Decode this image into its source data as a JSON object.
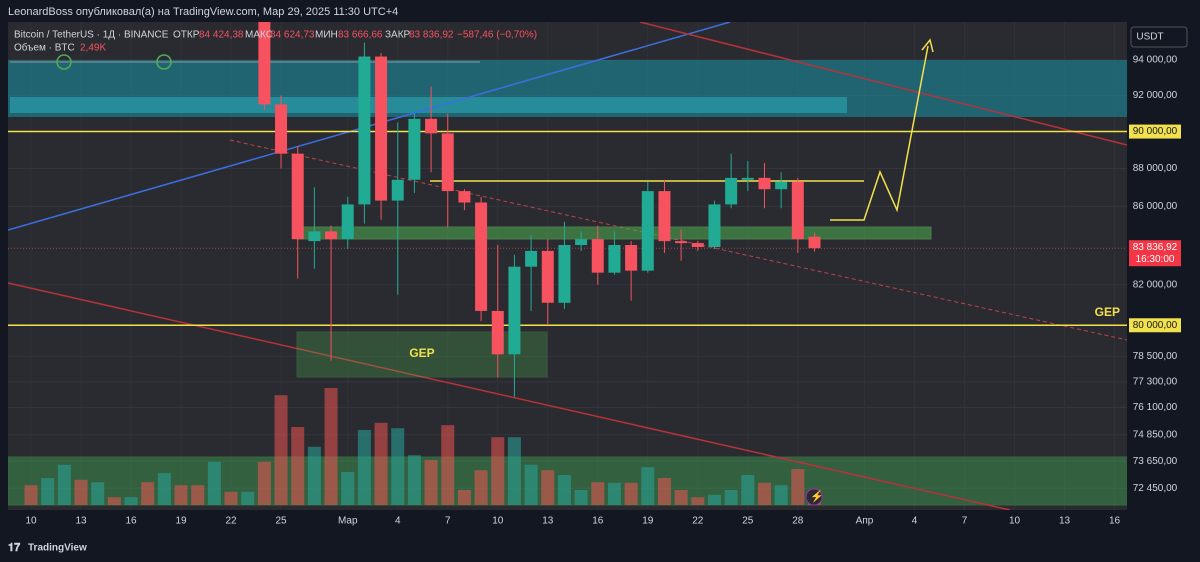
{
  "header": {
    "publisher": "LeonardBoss опубликовал(а) на TradingView.com, Мар 29, 2025 11:30 UTC+4",
    "symbol": "Bitcoin / TetherUS · 1Д · BINANCE",
    "open_label": "ОТКР",
    "open": "84 424,38",
    "high_label": "МАКС",
    "high": "84 624,73",
    "low_label": "МИН",
    "low": "83 666,66",
    "close_label": "ЗАКР",
    "close": "83 836,92",
    "change": "−587,46 (−0,70%)",
    "volume_label": "Объем · BTC",
    "volume": "2,49K",
    "currency": "USDT"
  },
  "annotations": {
    "gep_box": "GEP",
    "gep_right": "GEP"
  },
  "footer": {
    "brand": "TradingView"
  },
  "chart_data": {
    "type": "candlestick",
    "log_scale": true,
    "categories": [
      "10",
      null,
      null,
      "13",
      null,
      null,
      "16",
      null,
      null,
      "19",
      null,
      null,
      "22",
      null,
      null,
      "25",
      null,
      null,
      null,
      "Мар",
      null,
      null,
      "4",
      null,
      null,
      "7",
      null,
      null,
      "10",
      null,
      null,
      "13",
      null,
      null,
      "16",
      null,
      null,
      "19",
      null,
      null,
      "22",
      null,
      null,
      "25",
      null,
      null,
      "28",
      null,
      null,
      null,
      "Апр",
      null,
      null,
      "4",
      null,
      null,
      "7",
      null,
      null,
      "10",
      null,
      null,
      "13",
      null,
      null,
      "16",
      null
    ],
    "open": [
      null,
      null,
      null,
      null,
      null,
      null,
      null,
      null,
      null,
      null,
      null,
      null,
      null,
      null,
      96300,
      91500,
      88800,
      84200,
      84700,
      84300,
      86100,
      94200,
      86300,
      87400,
      90700,
      89900,
      86800,
      86200,
      80700,
      78600,
      82900,
      83700,
      81100,
      84000,
      84300,
      82600,
      84000,
      82700,
      86800,
      84200,
      84100,
      83900,
      86100,
      87400,
      87500,
      86900,
      87300,
      84424.38,
      null,
      null,
      null,
      null,
      null,
      null,
      null,
      null,
      null,
      null,
      null,
      null,
      null,
      null,
      null,
      null,
      null,
      null,
      null
    ],
    "high": [
      null,
      null,
      null,
      null,
      null,
      null,
      null,
      null,
      null,
      null,
      null,
      null,
      null,
      null,
      96500,
      92000,
      89200,
      87000,
      85000,
      86500,
      95000,
      94400,
      90500,
      91000,
      92500,
      91000,
      86900,
      86500,
      84000,
      83500,
      84500,
      84300,
      85200,
      84700,
      85000,
      84700,
      84200,
      87300,
      87400,
      84800,
      84200,
      86300,
      88800,
      88400,
      88300,
      87800,
      87500,
      84624.73,
      null,
      null,
      null,
      null,
      null,
      null,
      null,
      null,
      null,
      null,
      null,
      null,
      null,
      null,
      null,
      null,
      null,
      null,
      null
    ],
    "low": [
      null,
      null,
      null,
      null,
      null,
      null,
      null,
      null,
      null,
      null,
      null,
      null,
      null,
      null,
      91200,
      88000,
      82300,
      82800,
      78300,
      83800,
      85100,
      85300,
      81500,
      86700,
      87800,
      84900,
      85800,
      80200,
      77500,
      76600,
      80700,
      80000,
      80800,
      83700,
      82000,
      82500,
      81200,
      82600,
      83600,
      83200,
      83700,
      83800,
      85900,
      86800,
      85900,
      85900,
      83600,
      83666.66,
      null,
      null,
      null,
      null,
      null,
      null,
      null,
      null,
      null,
      null,
      null,
      null,
      null,
      null,
      null,
      null,
      null,
      null,
      null
    ],
    "close": [
      null,
      null,
      null,
      null,
      null,
      null,
      null,
      null,
      null,
      null,
      null,
      null,
      null,
      null,
      91500,
      88800,
      84300,
      84700,
      84300,
      86100,
      94200,
      86300,
      87400,
      90700,
      89900,
      86800,
      86200,
      80700,
      78600,
      82900,
      83700,
      81100,
      84000,
      84300,
      82600,
      84000,
      82700,
      86800,
      84200,
      84100,
      83900,
      86100,
      87500,
      87500,
      86900,
      87300,
      84300,
      83836.92,
      null,
      null,
      null,
      null,
      null,
      null,
      null,
      null,
      null,
      null,
      null,
      null,
      null,
      null,
      null,
      null,
      null,
      null,
      null
    ],
    "volume": [
      3.3,
      4.5,
      6.7,
      4.2,
      3.8,
      1.3,
      1.3,
      3.8,
      5.3,
      3.3,
      3.3,
      7.2,
      2.2,
      2.2,
      7.2,
      18.3,
      13,
      9.7,
      19.5,
      5.5,
      12.5,
      13.7,
      12.8,
      8.3,
      7.5,
      13.3,
      2.5,
      5.8,
      11.3,
      11.3,
      6.7,
      5.8,
      5,
      2.5,
      3.8,
      3.7,
      3.7,
      6.3,
      4.5,
      2.5,
      1.3,
      1.7,
      2.5,
      5,
      3.7,
      3.3,
      6,
      2.49,
      null,
      null,
      null,
      null,
      null,
      null,
      null,
      null,
      null,
      null,
      null,
      null,
      null,
      null,
      null,
      null,
      null,
      null,
      null
    ],
    "volume_colors": [
      "#ef5350",
      "#26a69a",
      "#26a69a",
      "#ef5350",
      "#26a69a",
      "#ef5350",
      "#26a69a",
      "#ef5350",
      "#26a69a",
      "#ef5350",
      "#ef5350",
      "#26a69a",
      "#ef5350",
      "#26a69a",
      "#ef5350",
      "#ef5350",
      "#ef5350",
      "#26a69a",
      "#ef5350",
      "#26a69a",
      "#26a69a",
      "#ef5350",
      "#26a69a",
      "#26a69a",
      "#ef5350",
      "#ef5350",
      "#ef5350",
      "#ef5350",
      "#ef5350",
      "#26a69a",
      "#26a69a",
      "#ef5350",
      "#26a69a",
      "#26a69a",
      "#ef5350",
      "#26a69a",
      "#ef5350",
      "#26a69a",
      "#ef5350",
      "#ef5350",
      "#ef5350",
      "#26a69a",
      "#26a69a",
      "#26a69a",
      "#ef5350",
      "#26a69a",
      "#ef5350",
      "#ef5350",
      null,
      null,
      null,
      null,
      null,
      null,
      null,
      null,
      null,
      null,
      null,
      null,
      null,
      null,
      null,
      null,
      null,
      null,
      null
    ],
    "up_color": "#22ab94",
    "down_color": "#f7525f",
    "ylim": [
      71500,
      96200
    ],
    "yticks": [
      {
        "value": 94000,
        "label": "94 000,00"
      },
      {
        "value": 92000,
        "label": "92 000,00"
      },
      {
        "value": 90000,
        "label": "90 000,00",
        "highlight": true
      },
      {
        "value": 88000,
        "label": "88 000,00"
      },
      {
        "value": 86000,
        "label": "86 000,00"
      },
      {
        "value": 82000,
        "label": "82 000,00"
      },
      {
        "value": 80000,
        "label": "80 000,00",
        "highlight": true
      },
      {
        "value": 78500,
        "label": "78 500,00"
      },
      {
        "value": 77300,
        "label": "77 300,00"
      },
      {
        "value": 76100,
        "label": "76 100,00"
      },
      {
        "value": 74850,
        "label": "74 850,00"
      },
      {
        "value": 73650,
        "label": "73 650,00"
      },
      {
        "value": 72450,
        "label": "72 450,00"
      }
    ],
    "last_price": 83836.92,
    "last_price_label": "83 836,92",
    "countdown": "16:30:00",
    "grid": true
  }
}
